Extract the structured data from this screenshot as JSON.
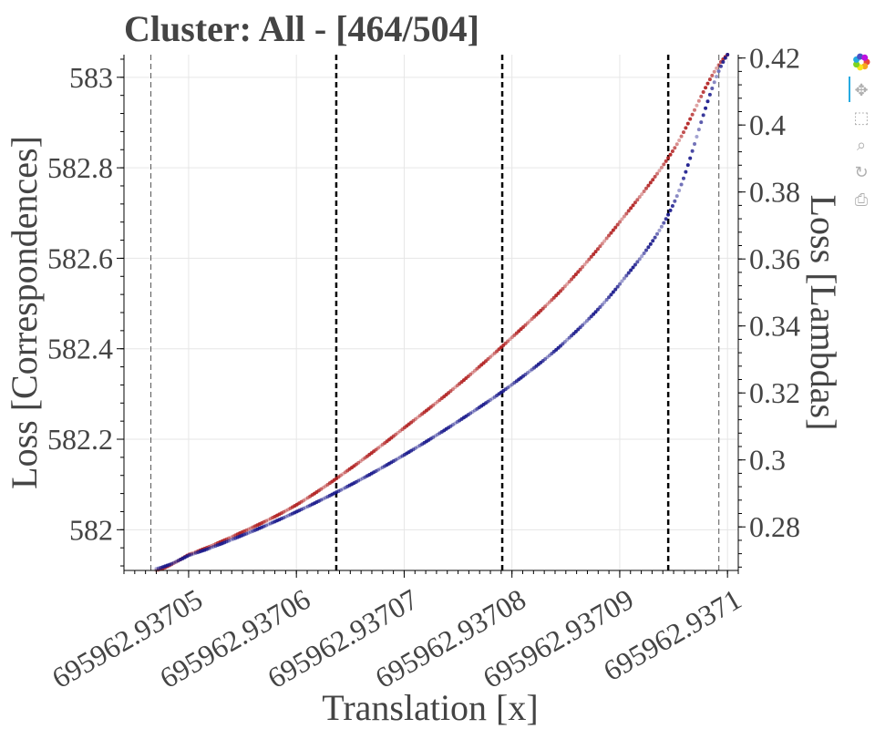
{
  "chart_data": {
    "type": "scatter",
    "title": "Cluster: All - [464/504]",
    "xlabel": "Translation [x]",
    "ylabel_left": "Loss [Correspondences]",
    "ylabel_right": "Loss [Lambdas]",
    "x_offset_note": "",
    "xlim": [
      695962.937044,
      695962.937101
    ],
    "ylim_left": [
      581.91,
      583.05
    ],
    "ylim_right": [
      0.267,
      0.421
    ],
    "x_ticks": [
      695962.93705,
      695962.93706,
      695962.93707,
      695962.93708,
      695962.93709,
      695962.9371
    ],
    "x_tick_labels": [
      "695962.93705",
      "695962.93706",
      "695962.93707",
      "695962.93708",
      "695962.93709",
      "695962.9371"
    ],
    "y_left_ticks": [
      582,
      582.2,
      582.4,
      582.6,
      582.8,
      583
    ],
    "y_left_tick_labels": [
      "582",
      "582.2",
      "582.4",
      "582.6",
      "582.8",
      "583"
    ],
    "y_right_ticks": [
      0.28,
      0.3,
      0.32,
      0.34,
      0.36,
      0.38,
      0.4,
      0.42
    ],
    "y_right_tick_labels": [
      "0.28",
      "0.3",
      "0.32",
      "0.34",
      "0.36",
      "0.38",
      "0.4",
      "0.42"
    ],
    "grid": true,
    "vlines": [
      {
        "x": 695962.9370465,
        "style": "thin-dashed",
        "color": "#555555"
      },
      {
        "x": 695962.9370637,
        "style": "dashed",
        "color": "#000000"
      },
      {
        "x": 695962.9370791,
        "style": "dashed",
        "color": "#000000"
      },
      {
        "x": 695962.9370945,
        "style": "dashed",
        "color": "#000000"
      },
      {
        "x": 695962.9370992,
        "style": "thin-dashed",
        "color": "#555555"
      }
    ],
    "series": [
      {
        "axis": "left",
        "color": "#b22222",
        "x": [
          695962.937047,
          695962.93705,
          695962.937055,
          695962.93706,
          695962.937065,
          695962.93707,
          695962.937075,
          695962.93708,
          695962.937085,
          695962.93709,
          695962.937095,
          695962.9371
        ],
        "y": [
          581.91,
          581.945,
          581.995,
          582.055,
          582.135,
          582.225,
          582.32,
          582.425,
          582.54,
          582.68,
          582.84,
          583.05
        ]
      },
      {
        "axis": "right",
        "color": "#1a1a8c",
        "x": [
          695962.937047,
          695962.93705,
          695962.937055,
          695962.93706,
          695962.937065,
          695962.93707,
          695962.937075,
          695962.93708,
          695962.937085,
          695962.93709,
          695962.937095,
          695962.9371
        ],
        "y": [
          0.2675,
          0.2715,
          0.2775,
          0.2845,
          0.2925,
          0.3015,
          0.3115,
          0.3225,
          0.3355,
          0.3525,
          0.3765,
          0.421
        ]
      }
    ]
  },
  "toolbar": {
    "tools": [
      {
        "name": "bokeh-logo-icon",
        "glyph": "",
        "active": false
      },
      {
        "name": "pan-tool-icon",
        "glyph": "✥",
        "active": true
      },
      {
        "name": "box-zoom-tool-icon",
        "glyph": "⬚",
        "active": false
      },
      {
        "name": "wheel-zoom-tool-icon",
        "glyph": "⌕",
        "active": false
      },
      {
        "name": "reset-tool-icon",
        "glyph": "↻",
        "active": false
      },
      {
        "name": "save-tool-icon",
        "glyph": "⎙",
        "active": false
      }
    ]
  }
}
